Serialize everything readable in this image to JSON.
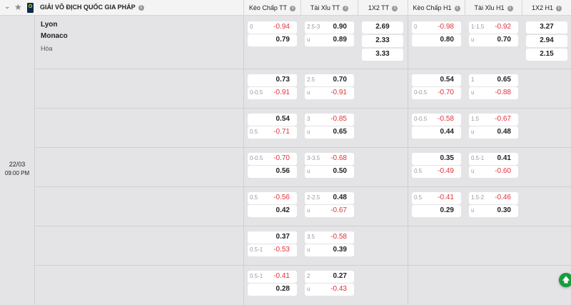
{
  "header": {
    "league": "GIẢI VÔ ĐỊCH QUỐC GIA PHÁP",
    "columns": [
      "Kèo Chấp TT",
      "Tài Xỉu TT",
      "1X2 TT",
      "Kèo Chấp H1",
      "Tài Xỉu H1",
      "1X2 H1"
    ]
  },
  "match": {
    "home": "Lyon",
    "away": "Monaco",
    "draw": "Hòa",
    "date": "22/03",
    "time": "09:00 PM"
  },
  "colors": {
    "negative": "#e0313a",
    "accent": "#1a9b3d"
  },
  "rows": [
    {
      "kc_tt": [
        [
          "0",
          "-0.94"
        ],
        [
          "",
          "0.79"
        ]
      ],
      "tx_tt": [
        [
          "2.5-3",
          "0.90"
        ],
        [
          "u",
          "0.89"
        ]
      ],
      "x12_tt": [
        "2.69",
        "2.33",
        "3.33"
      ],
      "kc_h1": [
        [
          "0",
          "-0.98"
        ],
        [
          "",
          "0.80"
        ]
      ],
      "tx_h1": [
        [
          "1-1.5",
          "-0.92"
        ],
        [
          "u",
          "0.70"
        ]
      ],
      "x12_h1": [
        "3.27",
        "2.94",
        "2.15"
      ]
    },
    {
      "kc_tt": [
        [
          "",
          "0.73"
        ],
        [
          "0-0.5",
          "-0.91"
        ]
      ],
      "tx_tt": [
        [
          "2.5",
          "0.70"
        ],
        [
          "u",
          "-0.91"
        ]
      ],
      "kc_h1": [
        [
          "",
          "0.54"
        ],
        [
          "0-0.5",
          "-0.70"
        ]
      ],
      "tx_h1": [
        [
          "1",
          "0.65"
        ],
        [
          "u",
          "-0.88"
        ]
      ]
    },
    {
      "kc_tt": [
        [
          "",
          "0.54"
        ],
        [
          "0.5",
          "-0.71"
        ]
      ],
      "tx_tt": [
        [
          "3",
          "-0.85"
        ],
        [
          "u",
          "0.65"
        ]
      ],
      "kc_h1": [
        [
          "0-0.5",
          "-0.58"
        ],
        [
          "",
          "0.44"
        ]
      ],
      "tx_h1": [
        [
          "1.5",
          "-0.67"
        ],
        [
          "u",
          "0.48"
        ]
      ]
    },
    {
      "kc_tt": [
        [
          "0-0.5",
          "-0.70"
        ],
        [
          "",
          "0.56"
        ]
      ],
      "tx_tt": [
        [
          "3-3.5",
          "-0.68"
        ],
        [
          "u",
          "0.50"
        ]
      ],
      "kc_h1": [
        [
          "",
          "0.35"
        ],
        [
          "0.5",
          "-0.49"
        ]
      ],
      "tx_h1": [
        [
          "0.5-1",
          "0.41"
        ],
        [
          "u",
          "-0.60"
        ]
      ]
    },
    {
      "kc_tt": [
        [
          "0.5",
          "-0.56"
        ],
        [
          "",
          "0.42"
        ]
      ],
      "tx_tt": [
        [
          "2-2.5",
          "0.48"
        ],
        [
          "u",
          "-0.67"
        ]
      ],
      "kc_h1": [
        [
          "0.5",
          "-0.41"
        ],
        [
          "",
          "0.29"
        ]
      ],
      "tx_h1": [
        [
          "1.5-2",
          "-0.46"
        ],
        [
          "u",
          "0.30"
        ]
      ]
    },
    {
      "kc_tt": [
        [
          "",
          "0.37"
        ],
        [
          "0.5-1",
          "-0.53"
        ]
      ],
      "tx_tt": [
        [
          "3.5",
          "-0.58"
        ],
        [
          "u",
          "0.39"
        ]
      ]
    },
    {
      "kc_tt": [
        [
          "0.5-1",
          "-0.41"
        ],
        [
          "",
          "0.28"
        ]
      ],
      "tx_tt": [
        [
          "2",
          "0.27"
        ],
        [
          "u",
          "-0.43"
        ]
      ]
    }
  ]
}
